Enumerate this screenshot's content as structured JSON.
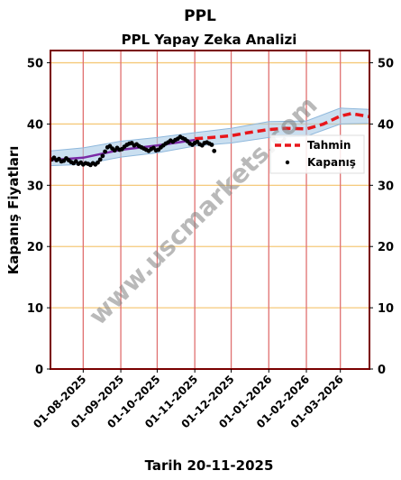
{
  "chart_data": {
    "type": "line",
    "title": "PPL",
    "subtitle": "PPL Yapay Zeka Analizi",
    "xlabel": "Tarih 20-11-2025",
    "ylabel": "Kapanış Fiyatları",
    "ylim": [
      0,
      52
    ],
    "yticks": [
      0,
      10,
      20,
      30,
      40,
      50
    ],
    "xticks": [
      "01-08-2025",
      "01-09-2025",
      "01-10-2025",
      "01-11-2025",
      "01-12-2025",
      "01-01-2026",
      "01-02-2026",
      "01-03-2026"
    ],
    "grid_horizontal": true,
    "legend_position": "right",
    "watermark": "www.uscmarkets.com",
    "colors": {
      "forecast": "#e8161b",
      "close": "#000000",
      "band": "#a7c9e6",
      "trend": "#7a2aa6",
      "hgrid": "#f5c97a",
      "vgrid": "#e07070",
      "frame": "#7a0000"
    },
    "series": [
      {
        "name": "Tahmin",
        "style": "dashed",
        "points": [
          [
            "2025-11-01",
            37.6
          ],
          [
            "2025-11-15",
            37.8
          ],
          [
            "2025-12-01",
            38.1
          ],
          [
            "2025-12-15",
            38.6
          ],
          [
            "2026-01-01",
            39.1
          ],
          [
            "2026-01-15",
            39.3
          ],
          [
            "2026-02-01",
            39.2
          ],
          [
            "2026-02-15",
            40.0
          ],
          [
            "2026-03-01",
            41.3
          ],
          [
            "2026-03-10",
            41.7
          ],
          [
            "2026-03-25",
            41.2
          ]
        ]
      },
      {
        "name": "Kapanış",
        "style": "scatter",
        "points": [
          [
            "2025-07-06",
            34.2
          ],
          [
            "2025-07-08",
            34.5
          ],
          [
            "2025-07-10",
            34.1
          ],
          [
            "2025-07-12",
            34.3
          ],
          [
            "2025-07-14",
            33.9
          ],
          [
            "2025-07-16",
            34.0
          ],
          [
            "2025-07-18",
            34.4
          ],
          [
            "2025-07-20",
            34.1
          ],
          [
            "2025-07-22",
            33.8
          ],
          [
            "2025-07-24",
            33.6
          ],
          [
            "2025-07-26",
            33.9
          ],
          [
            "2025-07-28",
            33.5
          ],
          [
            "2025-07-30",
            33.7
          ],
          [
            "2025-08-01",
            33.4
          ],
          [
            "2025-08-03",
            33.6
          ],
          [
            "2025-08-05",
            33.5
          ],
          [
            "2025-08-07",
            33.3
          ],
          [
            "2025-08-09",
            33.6
          ],
          [
            "2025-08-11",
            33.4
          ],
          [
            "2025-08-13",
            33.7
          ],
          [
            "2025-08-15",
            34.2
          ],
          [
            "2025-08-17",
            34.8
          ],
          [
            "2025-08-19",
            35.5
          ],
          [
            "2025-08-21",
            36.2
          ],
          [
            "2025-08-23",
            36.4
          ],
          [
            "2025-08-25",
            36.0
          ],
          [
            "2025-08-27",
            35.7
          ],
          [
            "2025-08-29",
            36.1
          ],
          [
            "2025-08-31",
            35.8
          ],
          [
            "2025-09-02",
            35.9
          ],
          [
            "2025-09-04",
            36.3
          ],
          [
            "2025-09-06",
            36.6
          ],
          [
            "2025-09-08",
            36.8
          ],
          [
            "2025-09-10",
            36.9
          ],
          [
            "2025-09-12",
            36.5
          ],
          [
            "2025-09-14",
            36.7
          ],
          [
            "2025-09-16",
            36.4
          ],
          [
            "2025-09-18",
            36.2
          ],
          [
            "2025-09-20",
            36.0
          ],
          [
            "2025-09-22",
            35.8
          ],
          [
            "2025-09-24",
            35.6
          ],
          [
            "2025-09-26",
            35.9
          ],
          [
            "2025-09-28",
            36.1
          ],
          [
            "2025-09-30",
            35.7
          ],
          [
            "2025-10-02",
            35.8
          ],
          [
            "2025-10-04",
            36.2
          ],
          [
            "2025-10-06",
            36.5
          ],
          [
            "2025-10-08",
            36.8
          ],
          [
            "2025-10-10",
            37.0
          ],
          [
            "2025-10-12",
            37.3
          ],
          [
            "2025-10-14",
            37.1
          ],
          [
            "2025-10-16",
            37.4
          ],
          [
            "2025-10-18",
            37.6
          ],
          [
            "2025-10-20",
            37.9
          ],
          [
            "2025-10-22",
            37.7
          ],
          [
            "2025-10-24",
            37.5
          ],
          [
            "2025-10-26",
            37.2
          ],
          [
            "2025-10-28",
            36.8
          ],
          [
            "2025-10-30",
            36.6
          ],
          [
            "2025-11-01",
            36.9
          ],
          [
            "2025-11-03",
            37.1
          ],
          [
            "2025-11-05",
            36.7
          ],
          [
            "2025-11-07",
            36.5
          ],
          [
            "2025-11-09",
            36.9
          ],
          [
            "2025-11-11",
            37.0
          ],
          [
            "2025-11-13",
            36.8
          ],
          [
            "2025-11-15",
            36.6
          ],
          [
            "2025-11-17",
            35.6
          ]
        ]
      },
      {
        "style": "line",
        "points": [
          [
            "2025-07-05",
            34.1
          ],
          [
            "2025-08-01",
            34.5
          ],
          [
            "2025-09-01",
            35.8
          ],
          [
            "2025-10-01",
            36.5
          ],
          [
            "2025-11-01",
            37.4
          ]
        ]
      }
    ],
    "band": {
      "upper": [
        [
          "2025-07-05",
          35.6
        ],
        [
          "2025-08-01",
          36.1
        ],
        [
          "2025-09-01",
          37.2
        ],
        [
          "2025-10-01",
          37.8
        ],
        [
          "2025-11-01",
          38.6
        ],
        [
          "2025-12-01",
          39.3
        ],
        [
          "2026-01-01",
          40.4
        ],
        [
          "2026-02-01",
          40.5
        ],
        [
          "2026-03-01",
          42.6
        ],
        [
          "2026-03-25",
          42.4
        ]
      ],
      "lower": [
        [
          "2025-07-05",
          33.2
        ],
        [
          "2025-08-01",
          33.4
        ],
        [
          "2025-09-01",
          34.6
        ],
        [
          "2025-10-01",
          35.3
        ],
        [
          "2025-11-01",
          36.4
        ],
        [
          "2025-12-01",
          36.9
        ],
        [
          "2026-01-01",
          37.8
        ],
        [
          "2026-02-01",
          38.0
        ],
        [
          "2026-03-01",
          40.0
        ],
        [
          "2026-03-25",
          40.1
        ]
      ]
    }
  }
}
